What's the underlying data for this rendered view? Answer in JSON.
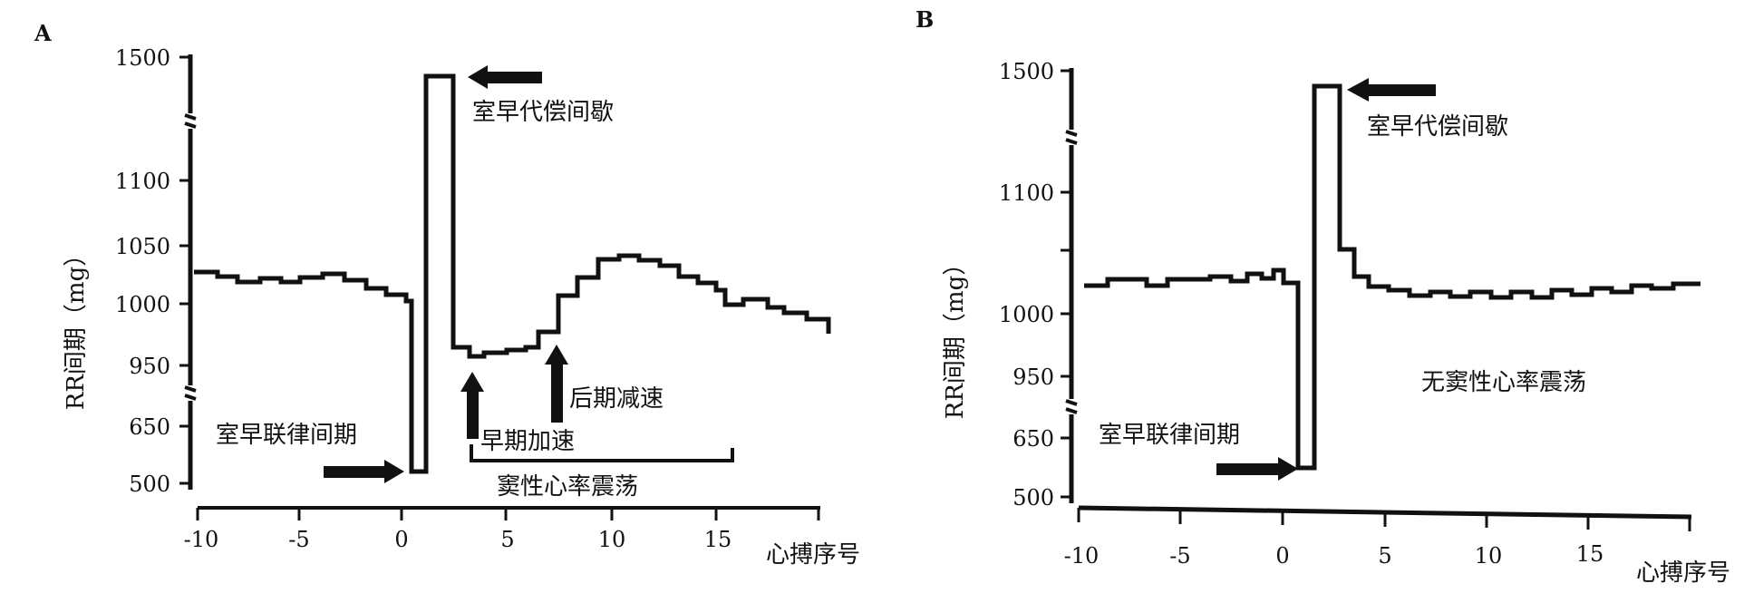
{
  "chart_data": [
    {
      "panel": "A",
      "type": "line",
      "xlabel": "心搏序号",
      "ylabel": "RR间期（mg）",
      "x_ticks": [
        "-10",
        "-5",
        "0",
        "5",
        "10",
        "15"
      ],
      "y_ticks": [
        "500",
        "650",
        "950",
        "1000",
        "1050",
        "1100",
        "1500"
      ],
      "x": [
        -10,
        -9,
        -8,
        -7,
        -6,
        -5,
        -4,
        -3,
        -2,
        -1,
        0,
        1,
        2,
        3,
        4,
        5,
        6,
        7,
        8,
        9,
        10,
        11,
        12,
        13,
        14,
        15,
        16,
        17,
        18,
        19
      ],
      "y": [
        1065,
        1060,
        1055,
        1058,
        1055,
        1060,
        1062,
        1065,
        1060,
        1052,
        1040,
        1030,
        520,
        1450,
        1000,
        995,
        998,
        1000,
        1005,
        1030,
        1055,
        1065,
        1075,
        1075,
        1065,
        1055,
        1040,
        1025,
        1020,
        1010
      ],
      "annotations": [
        "室早代偿间歇",
        "室早联律间期",
        "早期加速",
        "后期减速",
        "窦性心率震荡"
      ]
    },
    {
      "panel": "B",
      "type": "line",
      "xlabel": "心搏序号",
      "ylabel": "RR间期（mg）",
      "x_ticks": [
        "-10",
        "-5",
        "0",
        "5",
        "10",
        "15"
      ],
      "y_ticks": [
        "500",
        "650",
        "950",
        "1000",
        "1100",
        "1500"
      ],
      "x": [
        -10,
        -9,
        -8,
        -7,
        -6,
        -5,
        -4,
        -3,
        -2,
        -1,
        0,
        1,
        2,
        3,
        4,
        5,
        6,
        7,
        8,
        9,
        10,
        11,
        12,
        13,
        14,
        15,
        16,
        17,
        18,
        19
      ],
      "y": [
        1030,
        1040,
        1040,
        1030,
        1040,
        1040,
        1042,
        1045,
        1040,
        1050,
        1030,
        560,
        1450,
        1060,
        1035,
        1028,
        1020,
        1018,
        1022,
        1020,
        1015,
        1015,
        1020,
        1015,
        1022,
        1028,
        1025,
        1030,
        1030,
        1030
      ],
      "annotations": [
        "室早代偿间歇",
        "室早联律间期",
        "无窦性心率震荡"
      ]
    }
  ],
  "figure": {
    "panelA": {
      "label": "A",
      "yticks": {
        "t1500": "1500",
        "t1100": "1100",
        "t1050": "1050",
        "t1000": "1000",
        "t950": "950",
        "t650": "650",
        "t500": "500"
      },
      "xticks": {
        "m10": "-10",
        "m5": "-5",
        "z0": "0",
        "p5": "5",
        "p10": "10",
        "p15": "15"
      },
      "ylabel": "RR间期（mg）",
      "xlabel": "心搏序号",
      "note_comp_pause": "室早代偿间歇",
      "note_coupling": "室早联律间期",
      "note_early": "早期加速",
      "note_late": "后期减速",
      "note_hrt": "窦性心率震荡"
    },
    "panelB": {
      "label": "B",
      "yticks": {
        "t1500": "1500",
        "t1100": "1100",
        "t1000": "1000",
        "t950": "950",
        "t650": "650",
        "t500": "500"
      },
      "xticks": {
        "m10": "-10",
        "m5": "-5",
        "z0": "0",
        "p5": "5",
        "p10": "10",
        "p15": "15"
      },
      "ylabel": "RR间期（mg）",
      "xlabel": "心搏序号",
      "note_comp_pause": "室早代偿间歇",
      "note_coupling": "室早联律间期",
      "note_no_hrt": "无窦性心率震荡"
    }
  }
}
